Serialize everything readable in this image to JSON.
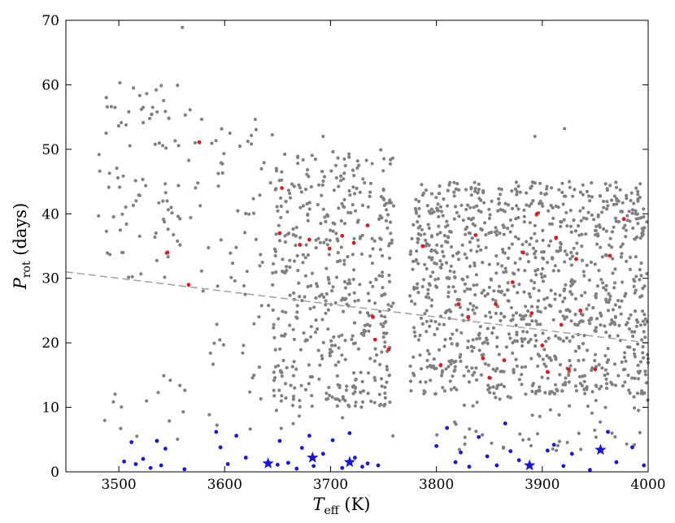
{
  "chart_data": {
    "type": "scatter",
    "xlabel_main": "T",
    "xlabel_sub": "eff",
    "xlabel_unit": " (K)",
    "ylabel_main": "P",
    "ylabel_sub": "rot",
    "ylabel_unit": " (days)",
    "xlim": [
      3450,
      4000
    ],
    "ylim": [
      0,
      70
    ],
    "xticks": [
      3500,
      3600,
      3700,
      3800,
      3900,
      4000
    ],
    "yticks": [
      0,
      10,
      20,
      30,
      40,
      50,
      60,
      70
    ],
    "grid": false,
    "colors": {
      "background_stars": "#808080",
      "red_points": "#e8161b",
      "blue_points": "#1414e6",
      "trend_line": "#a0a0a0"
    },
    "trend_line": {
      "x": [
        3450,
        4000
      ],
      "y": [
        31.0,
        20.0
      ],
      "style": "dashed"
    },
    "red_points": {
      "x": [
        3546,
        3566,
        3576,
        3652,
        3654,
        3671,
        3680,
        3699,
        3711,
        3722,
        3735,
        3740,
        3742,
        3755,
        3787,
        3804,
        3821,
        3830,
        3837,
        3844,
        3850,
        3856,
        3864,
        3872,
        3882,
        3890,
        3895,
        3900,
        3905,
        3913,
        3918,
        3925,
        3932,
        3936,
        3950,
        3964,
        3977
      ],
      "y": [
        34.0,
        29.0,
        51.1,
        37.0,
        44.0,
        35.2,
        36.0,
        34.6,
        36.6,
        35.5,
        38.2,
        24.0,
        20.5,
        19.0,
        35.0,
        16.5,
        26.0,
        24.0,
        36.7,
        17.6,
        14.6,
        26.0,
        17.3,
        29.4,
        34.0,
        24.6,
        40.0,
        19.6,
        15.5,
        36.3,
        22.8,
        15.9,
        33.0,
        25.0,
        15.9,
        33.5,
        39.2
      ]
    },
    "blue_points": {
      "x": [
        3505,
        3512,
        3516,
        3523,
        3530,
        3536,
        3540,
        3544,
        3562,
        3592,
        3596,
        3603,
        3611,
        3620,
        3650,
        3652,
        3660,
        3668,
        3673,
        3680,
        3684,
        3693,
        3702,
        3711,
        3718,
        3723,
        3730,
        3735,
        3745,
        3800,
        3810,
        3818,
        3823,
        3831,
        3840,
        3848,
        3857,
        3865,
        3870,
        3878,
        3905,
        3911,
        3920,
        3928,
        3945,
        3962,
        3970,
        3985,
        3996
      ],
      "y": [
        1.6,
        4.6,
        1.2,
        2.0,
        0.6,
        4.8,
        1.0,
        3.6,
        0.4,
        6.2,
        3.8,
        1.2,
        5.6,
        2.2,
        1.1,
        4.8,
        1.4,
        0.5,
        3.7,
        5.6,
        0.9,
        2.8,
        4.9,
        0.6,
        6.0,
        2.2,
        0.8,
        1.3,
        1.0,
        4.0,
        6.8,
        1.5,
        3.0,
        0.8,
        5.4,
        2.4,
        1.0,
        7.5,
        3.2,
        1.8,
        3.3,
        4.2,
        0.9,
        2.8,
        0.3,
        6.2,
        1.5,
        3.8,
        1.0
      ]
    },
    "blue_stars": {
      "x": [
        3641,
        3683,
        3718,
        3888,
        3955
      ],
      "y": [
        1.3,
        2.2,
        1.5,
        1.0,
        3.4
      ]
    },
    "background_clusters": [
      {
        "x": [
          3480,
          3575
        ],
        "y": [
          30,
          60
        ],
        "n": 90
      },
      {
        "x": [
          3575,
          3650
        ],
        "y": [
          15,
          55
        ],
        "n": 60
      },
      {
        "x": [
          3645,
          3760
        ],
        "y": [
          10,
          50
        ],
        "n": 460
      },
      {
        "x": [
          3775,
          4000
        ],
        "y": [
          12,
          45
        ],
        "n": 1050
      },
      {
        "x": [
          3800,
          4000
        ],
        "y": [
          3,
          13
        ],
        "n": 60
      },
      {
        "x": [
          3480,
          3760
        ],
        "y": [
          5,
          15
        ],
        "n": 40
      }
    ],
    "background_points": {
      "x": [
        3488,
        3501,
        3503,
        3523,
        3532,
        3560,
        3693,
        3893,
        3921
      ],
      "y": [
        52.5,
        60.3,
        34.0,
        56.5,
        56.5,
        68.9,
        52.0,
        52.0,
        53.2
      ]
    }
  }
}
